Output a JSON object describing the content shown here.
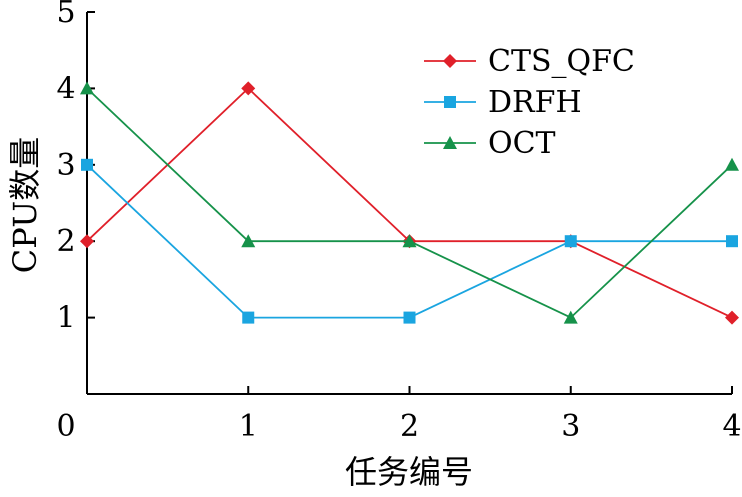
{
  "chart_data": {
    "type": "line",
    "title": "",
    "xlabel": "任务编号",
    "ylabel": "CPU数量",
    "x": [
      0,
      1,
      2,
      3,
      4
    ],
    "xlim": [
      0,
      4
    ],
    "ylim": [
      0,
      5
    ],
    "x_ticks": [
      "0",
      "1",
      "2",
      "3",
      "4"
    ],
    "y_ticks": [
      "1",
      "2",
      "3",
      "4",
      "5"
    ],
    "grid": false,
    "legend_position": "top-right",
    "series": [
      {
        "name": "CTS_QFC",
        "values": [
          2,
          4,
          2,
          2,
          1
        ],
        "color": "#e0202a",
        "marker": "diamond"
      },
      {
        "name": "DRFH",
        "values": [
          3,
          1,
          1,
          2,
          2
        ],
        "color": "#1aa5e0",
        "marker": "square"
      },
      {
        "name": "OCT",
        "values": [
          4,
          2,
          2,
          1,
          3
        ],
        "color": "#16924a",
        "marker": "triangle"
      }
    ]
  }
}
